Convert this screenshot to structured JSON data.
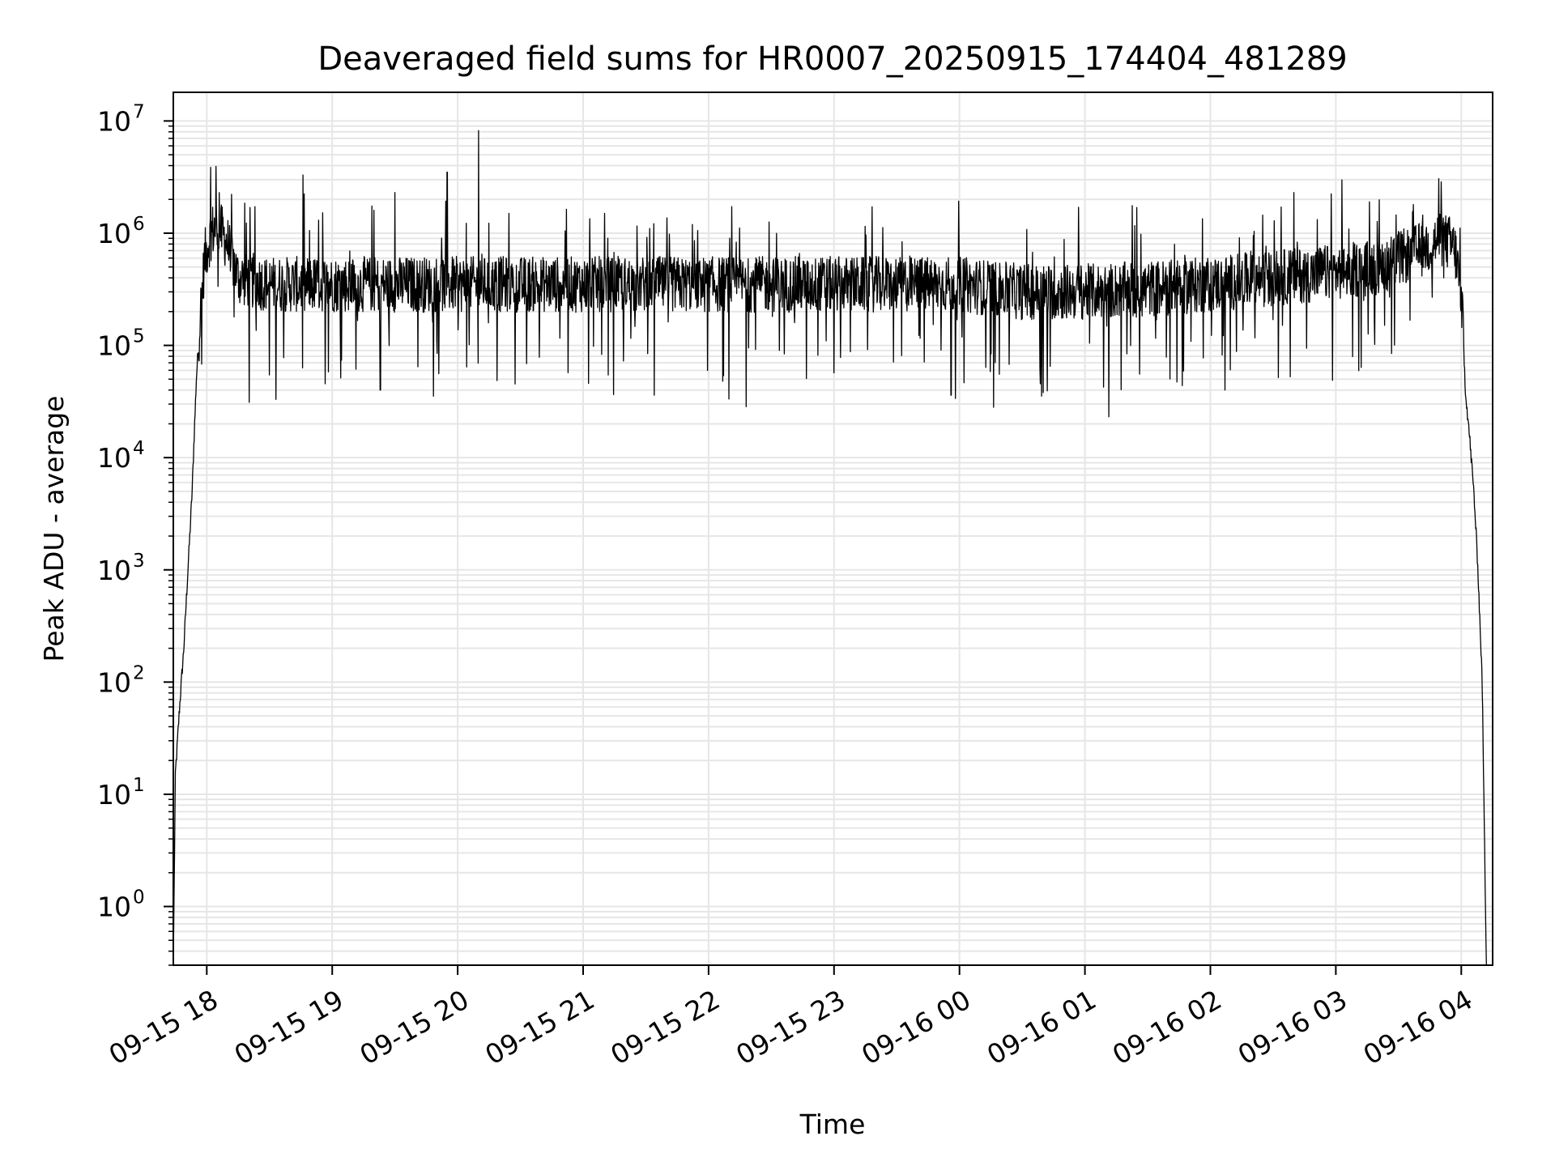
{
  "chart_data": {
    "type": "line",
    "title": "Deaveraged field sums for HR0007_20250915_174404_481289",
    "xlabel": "Time",
    "ylabel": "Peak ADU - average",
    "yscale": "log",
    "ylim": [
      0.3,
      18000000
    ],
    "xlim": [
      "2025-09-15 17:44",
      "2025-09-16 04:15"
    ],
    "grid": true,
    "x_tick_labels": [
      "09-15 18",
      "09-15 19",
      "09-15 20",
      "09-15 21",
      "09-15 22",
      "09-15 23",
      "09-16 00",
      "09-16 01",
      "09-16 02",
      "09-16 03",
      "09-16 04"
    ],
    "y_tick_labels": [
      {
        "base": "10",
        "exp": "0"
      },
      {
        "base": "10",
        "exp": "1"
      },
      {
        "base": "10",
        "exp": "2"
      },
      {
        "base": "10",
        "exp": "3"
      },
      {
        "base": "10",
        "exp": "4"
      },
      {
        "base": "10",
        "exp": "5"
      },
      {
        "base": "10",
        "exp": "6"
      },
      {
        "base": "10",
        "exp": "7"
      }
    ],
    "line_color": "#000000",
    "grid_color": "#e6e6e6",
    "series": [
      {
        "x": [
          "2025-09-15 17:44",
          "2025-09-15 17:45",
          "2025-09-15 17:47",
          "2025-09-15 17:49",
          "2025-09-15 17:51",
          "2025-09-15 17:53",
          "2025-09-15 17:55",
          "2025-09-15 17:57",
          "2025-09-15 17:59",
          "2025-09-15 18:02",
          "2025-09-15 18:05",
          "2025-09-15 18:10",
          "2025-09-15 18:15",
          "2025-09-15 18:30",
          "2025-09-15 18:45",
          "2025-09-15 19:00",
          "2025-09-15 19:30",
          "2025-09-15 20:00",
          "2025-09-15 20:30",
          "2025-09-15 21:00",
          "2025-09-15 21:30",
          "2025-09-15 22:00",
          "2025-09-15 22:30",
          "2025-09-15 23:00",
          "2025-09-15 23:30",
          "2025-09-16 00:00",
          "2025-09-16 00:30",
          "2025-09-16 01:00",
          "2025-09-16 01:30",
          "2025-09-16 02:00",
          "2025-09-16 02:30",
          "2025-09-16 03:00",
          "2025-09-16 03:20",
          "2025-09-16 03:40",
          "2025-09-16 03:50",
          "2025-09-16 03:55",
          "2025-09-16 03:57",
          "2025-09-16 04:00",
          "2025-09-16 04:02",
          "2025-09-16 04:04",
          "2025-09-16 04:06",
          "2025-09-16 04:08",
          "2025-09-16 04:10",
          "2025-09-16 04:12"
        ],
        "y": [
          0.3,
          15,
          60,
          200,
          1000,
          5000,
          50000,
          200000,
          600000,
          1000000,
          1200000,
          800000,
          400000,
          350000,
          350000,
          350000,
          350000,
          350000,
          350000,
          350000,
          350000,
          350000,
          350000,
          350000,
          350000,
          350000,
          300000,
          300000,
          320000,
          350000,
          400000,
          450000,
          500000,
          700000,
          900000,
          800000,
          700000,
          300000,
          40000,
          15000,
          5000,
          1000,
          100,
          0.3
        ]
      }
    ],
    "spikes": [
      {
        "x": "2025-09-15 18:06",
        "y": 2300000
      },
      {
        "x": "2025-09-15 18:46",
        "y": 3300000
      },
      {
        "x": "2025-09-15 19:20",
        "y": 1600000
      },
      {
        "x": "2025-09-15 19:30",
        "y": 2300000
      },
      {
        "x": "2025-09-15 19:55",
        "y": 3500000
      },
      {
        "x": "2025-09-15 20:10",
        "y": 8200000
      },
      {
        "x": "2025-09-16 00:57",
        "y": 1700000
      },
      {
        "x": "2025-09-16 02:40",
        "y": 2300000
      },
      {
        "x": "2025-09-16 03:16",
        "y": 1900000
      },
      {
        "x": "2025-09-16 03:37",
        "y": 1800000
      },
      {
        "x": "2025-09-15 18:33",
        "y": 33000
      },
      {
        "x": "2025-09-15 19:23",
        "y": 40000
      },
      {
        "x": "2025-09-15 21:34",
        "y": 36000
      },
      {
        "x": "2025-09-15 23:56",
        "y": 36000
      },
      {
        "x": "2025-09-16 00:40",
        "y": 38000
      },
      {
        "x": "2025-09-16 02:07",
        "y": 40000
      }
    ]
  }
}
